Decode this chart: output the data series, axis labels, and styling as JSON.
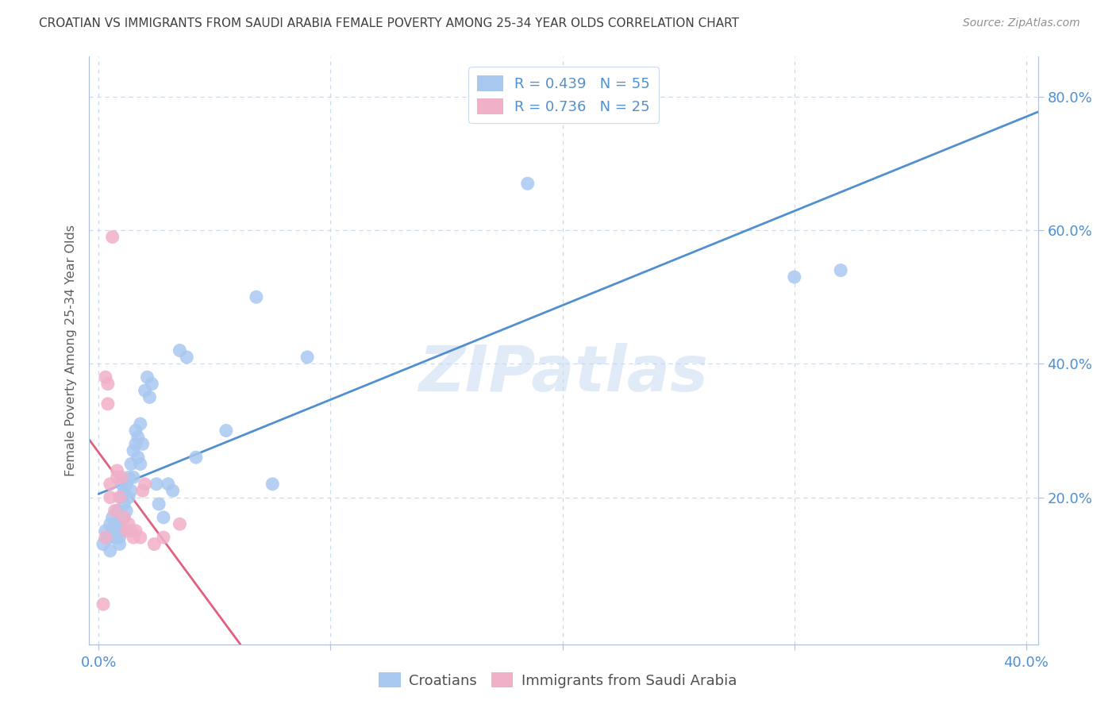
{
  "title": "CROATIAN VS IMMIGRANTS FROM SAUDI ARABIA FEMALE POVERTY AMONG 25-34 YEAR OLDS CORRELATION CHART",
  "source": "Source: ZipAtlas.com",
  "ylabel": "Female Poverty Among 25-34 Year Olds",
  "xlim": [
    -0.004,
    0.405
  ],
  "ylim": [
    -0.02,
    0.86
  ],
  "blue_color": "#a8c8f0",
  "pink_color": "#f0b0c8",
  "blue_line_color": "#5090d0",
  "pink_line_color": "#e06080",
  "tick_color": "#5090d0",
  "title_color": "#404040",
  "source_color": "#909090",
  "R_blue": 0.439,
  "N_blue": 55,
  "R_pink": 0.736,
  "N_pink": 25,
  "blue_scatter_x": [
    0.002,
    0.003,
    0.004,
    0.005,
    0.005,
    0.005,
    0.006,
    0.006,
    0.007,
    0.007,
    0.008,
    0.008,
    0.009,
    0.009,
    0.009,
    0.01,
    0.01,
    0.01,
    0.011,
    0.011,
    0.011,
    0.012,
    0.012,
    0.013,
    0.013,
    0.014,
    0.014,
    0.015,
    0.015,
    0.016,
    0.016,
    0.017,
    0.017,
    0.018,
    0.018,
    0.019,
    0.02,
    0.021,
    0.022,
    0.023,
    0.025,
    0.026,
    0.028,
    0.03,
    0.032,
    0.035,
    0.038,
    0.042,
    0.055,
    0.068,
    0.075,
    0.09,
    0.185,
    0.3,
    0.32
  ],
  "blue_scatter_y": [
    0.13,
    0.15,
    0.14,
    0.12,
    0.16,
    0.14,
    0.15,
    0.17,
    0.14,
    0.16,
    0.15,
    0.18,
    0.13,
    0.16,
    0.14,
    0.2,
    0.22,
    0.15,
    0.21,
    0.19,
    0.17,
    0.22,
    0.18,
    0.23,
    0.2,
    0.25,
    0.21,
    0.27,
    0.23,
    0.28,
    0.3,
    0.26,
    0.29,
    0.25,
    0.31,
    0.28,
    0.36,
    0.38,
    0.35,
    0.37,
    0.22,
    0.19,
    0.17,
    0.22,
    0.21,
    0.42,
    0.41,
    0.26,
    0.3,
    0.5,
    0.22,
    0.41,
    0.67,
    0.53,
    0.54
  ],
  "pink_scatter_x": [
    0.002,
    0.003,
    0.003,
    0.004,
    0.004,
    0.005,
    0.005,
    0.006,
    0.007,
    0.008,
    0.008,
    0.009,
    0.01,
    0.011,
    0.012,
    0.013,
    0.014,
    0.015,
    0.016,
    0.018,
    0.019,
    0.02,
    0.024,
    0.028,
    0.035
  ],
  "pink_scatter_y": [
    0.04,
    0.14,
    0.38,
    0.37,
    0.34,
    0.2,
    0.22,
    0.59,
    0.18,
    0.23,
    0.24,
    0.2,
    0.23,
    0.17,
    0.15,
    0.16,
    0.15,
    0.14,
    0.15,
    0.14,
    0.21,
    0.22,
    0.13,
    0.14,
    0.16
  ],
  "watermark": "ZIPatlas",
  "background_color": "#ffffff",
  "grid_color": "#ccd8ec",
  "axis_color": "#b0c0d8"
}
